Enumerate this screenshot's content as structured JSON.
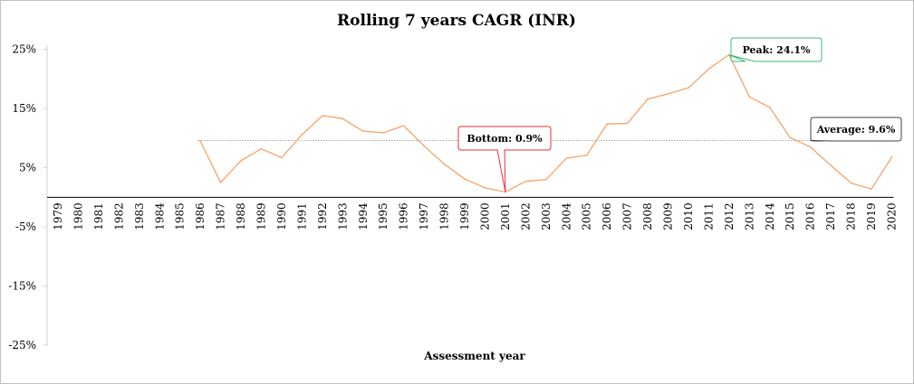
{
  "chart_data": {
    "type": "line",
    "title": "Rolling 7 years CAGR (INR)",
    "xlabel": "Assessment year",
    "ylabel": "",
    "ylim": [
      -25,
      30
    ],
    "y_ticks": [
      {
        "value": 25,
        "label": "25%"
      },
      {
        "value": 15,
        "label": "15%"
      },
      {
        "value": 5,
        "label": "5%"
      },
      {
        "value": -5,
        "label": "-5%"
      },
      {
        "value": -15,
        "label": "-15%"
      },
      {
        "value": -25,
        "label": "-25%"
      }
    ],
    "x_axis_at": 0,
    "grid": false,
    "x": [
      "1979",
      "1980",
      "1981",
      "1982",
      "1983",
      "1984",
      "1985",
      "1986",
      "1987",
      "1988",
      "1989",
      "1990",
      "1991",
      "1992",
      "1993",
      "1994",
      "1995",
      "1996",
      "1997",
      "1998",
      "1999",
      "2000",
      "2001",
      "2002",
      "2003",
      "2004",
      "2005",
      "2006",
      "2007",
      "2008",
      "2009",
      "2010",
      "2011",
      "2012",
      "2013",
      "2014",
      "2015",
      "2016",
      "2017",
      "2018",
      "2019",
      "2020"
    ],
    "series": [
      {
        "color": "#f4a46a",
        "values": [
          null,
          null,
          null,
          null,
          null,
          null,
          null,
          9.5,
          2.5,
          6.2,
          8.2,
          6.7,
          10.6,
          13.8,
          13.3,
          11.2,
          10.9,
          12.1,
          8.7,
          5.6,
          3.1,
          1.6,
          0.9,
          2.7,
          3.0,
          6.6,
          7.1,
          12.4,
          12.5,
          16.6,
          17.5,
          18.5,
          21.7,
          24.1,
          17.0,
          15.2,
          10.1,
          8.5,
          5.4,
          2.4,
          1.4,
          6.8
        ]
      }
    ],
    "reference_line": {
      "value": 9.6,
      "color": "#a6a6a6"
    },
    "annotations": [
      {
        "id": "bottom",
        "text": "Bottom: 0.9%",
        "x": "2001",
        "y": 0.9,
        "color": "#e8303a"
      },
      {
        "id": "peak",
        "text": "Peak: 24.1%",
        "x": "2012",
        "y": 24.1,
        "color": "#3cb878"
      },
      {
        "id": "average",
        "text": "Average: 9.6%",
        "x": "2016",
        "y": 9.6,
        "color": "#404040"
      }
    ]
  }
}
